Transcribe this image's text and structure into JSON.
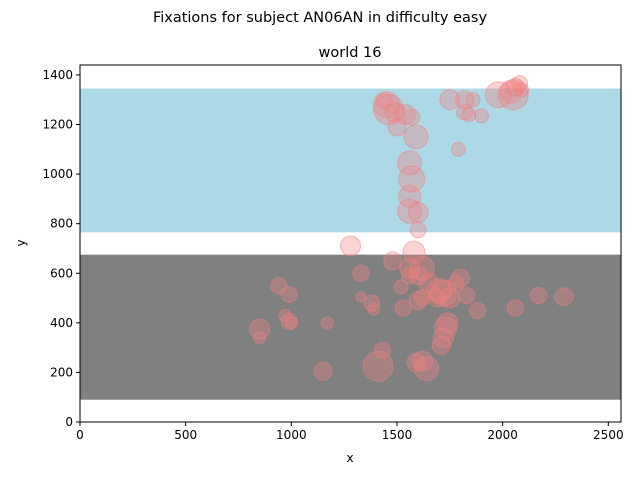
{
  "chart_data": {
    "type": "scatter",
    "suptitle": "Fixations for subject AN06AN in difficulty easy",
    "title": "world 16",
    "xlabel": "x",
    "ylabel": "y",
    "xlim": [
      0,
      2560
    ],
    "ylim": [
      0,
      1440
    ],
    "xticks": [
      0,
      500,
      1000,
      1500,
      2000,
      2500
    ],
    "yticks": [
      0,
      200,
      400,
      600,
      800,
      1000,
      1200,
      1400
    ],
    "grid": false,
    "legend": "none",
    "regions": [
      {
        "x0": 0,
        "x1": 2560,
        "y0": 90,
        "y1": 675,
        "color": "#808080"
      },
      {
        "x0": 0,
        "x1": 2560,
        "y0": 765,
        "y1": 1345,
        "color": "#add8e6"
      }
    ],
    "marker_color": "#f08080",
    "marker_alpha": 0.35,
    "points": [
      {
        "x": 1280,
        "y": 710,
        "s": 10
      },
      {
        "x": 1580,
        "y": 685,
        "s": 11
      },
      {
        "x": 1330,
        "y": 600,
        "s": 8
      },
      {
        "x": 1480,
        "y": 650,
        "s": 9
      },
      {
        "x": 1560,
        "y": 620,
        "s": 10
      },
      {
        "x": 1620,
        "y": 620,
        "s": 12
      },
      {
        "x": 1600,
        "y": 590,
        "s": 9
      },
      {
        "x": 1650,
        "y": 560,
        "s": 10
      },
      {
        "x": 1700,
        "y": 530,
        "s": 12
      },
      {
        "x": 1720,
        "y": 520,
        "s": 13
      },
      {
        "x": 1690,
        "y": 500,
        "s": 9
      },
      {
        "x": 1750,
        "y": 500,
        "s": 10
      },
      {
        "x": 1780,
        "y": 560,
        "s": 8
      },
      {
        "x": 1800,
        "y": 580,
        "s": 9
      },
      {
        "x": 1830,
        "y": 510,
        "s": 8
      },
      {
        "x": 1880,
        "y": 450,
        "s": 8
      },
      {
        "x": 1600,
        "y": 490,
        "s": 9
      },
      {
        "x": 1620,
        "y": 500,
        "s": 8
      },
      {
        "x": 1530,
        "y": 460,
        "s": 8
      },
      {
        "x": 1520,
        "y": 545,
        "s": 7
      },
      {
        "x": 1560,
        "y": 590,
        "s": 8
      },
      {
        "x": 1730,
        "y": 380,
        "s": 11
      },
      {
        "x": 1740,
        "y": 400,
        "s": 10
      },
      {
        "x": 1720,
        "y": 340,
        "s": 10
      },
      {
        "x": 1710,
        "y": 310,
        "s": 9
      },
      {
        "x": 1590,
        "y": 240,
        "s": 9
      },
      {
        "x": 1620,
        "y": 245,
        "s": 10
      },
      {
        "x": 1640,
        "y": 215,
        "s": 12
      },
      {
        "x": 1410,
        "y": 225,
        "s": 15
      },
      {
        "x": 1430,
        "y": 290,
        "s": 8
      },
      {
        "x": 1380,
        "y": 480,
        "s": 8
      },
      {
        "x": 1390,
        "y": 455,
        "s": 6
      },
      {
        "x": 1330,
        "y": 505,
        "s": 5
      },
      {
        "x": 1150,
        "y": 205,
        "s": 9
      },
      {
        "x": 1170,
        "y": 400,
        "s": 6
      },
      {
        "x": 940,
        "y": 550,
        "s": 8
      },
      {
        "x": 990,
        "y": 515,
        "s": 8
      },
      {
        "x": 970,
        "y": 430,
        "s": 6
      },
      {
        "x": 990,
        "y": 405,
        "s": 8
      },
      {
        "x": 1000,
        "y": 400,
        "s": 6
      },
      {
        "x": 850,
        "y": 375,
        "s": 10
      },
      {
        "x": 850,
        "y": 340,
        "s": 6
      },
      {
        "x": 2060,
        "y": 460,
        "s": 8
      },
      {
        "x": 2170,
        "y": 510,
        "s": 8
      },
      {
        "x": 2290,
        "y": 505,
        "s": 9
      },
      {
        "x": 1600,
        "y": 775,
        "s": 8
      },
      {
        "x": 1600,
        "y": 845,
        "s": 10
      },
      {
        "x": 1560,
        "y": 850,
        "s": 12
      },
      {
        "x": 1560,
        "y": 910,
        "s": 11
      },
      {
        "x": 1570,
        "y": 980,
        "s": 13
      },
      {
        "x": 1560,
        "y": 1045,
        "s": 12
      },
      {
        "x": 1590,
        "y": 1150,
        "s": 12
      },
      {
        "x": 1540,
        "y": 1240,
        "s": 10
      },
      {
        "x": 1570,
        "y": 1230,
        "s": 8
      },
      {
        "x": 1500,
        "y": 1190,
        "s": 9
      },
      {
        "x": 1450,
        "y": 1280,
        "s": 13
      },
      {
        "x": 1460,
        "y": 1260,
        "s": 15
      },
      {
        "x": 1490,
        "y": 1250,
        "s": 10
      },
      {
        "x": 1440,
        "y": 1295,
        "s": 8
      },
      {
        "x": 1790,
        "y": 1100,
        "s": 7
      },
      {
        "x": 1750,
        "y": 1300,
        "s": 10
      },
      {
        "x": 1820,
        "y": 1300,
        "s": 9
      },
      {
        "x": 1820,
        "y": 1250,
        "s": 8
      },
      {
        "x": 1840,
        "y": 1240,
        "s": 7
      },
      {
        "x": 1860,
        "y": 1300,
        "s": 7
      },
      {
        "x": 1900,
        "y": 1235,
        "s": 7
      },
      {
        "x": 1980,
        "y": 1320,
        "s": 13
      },
      {
        "x": 2040,
        "y": 1330,
        "s": 11
      },
      {
        "x": 2050,
        "y": 1320,
        "s": 15
      },
      {
        "x": 2060,
        "y": 1350,
        "s": 9
      },
      {
        "x": 2080,
        "y": 1365,
        "s": 8
      },
      {
        "x": 2090,
        "y": 1340,
        "s": 7
      }
    ]
  }
}
